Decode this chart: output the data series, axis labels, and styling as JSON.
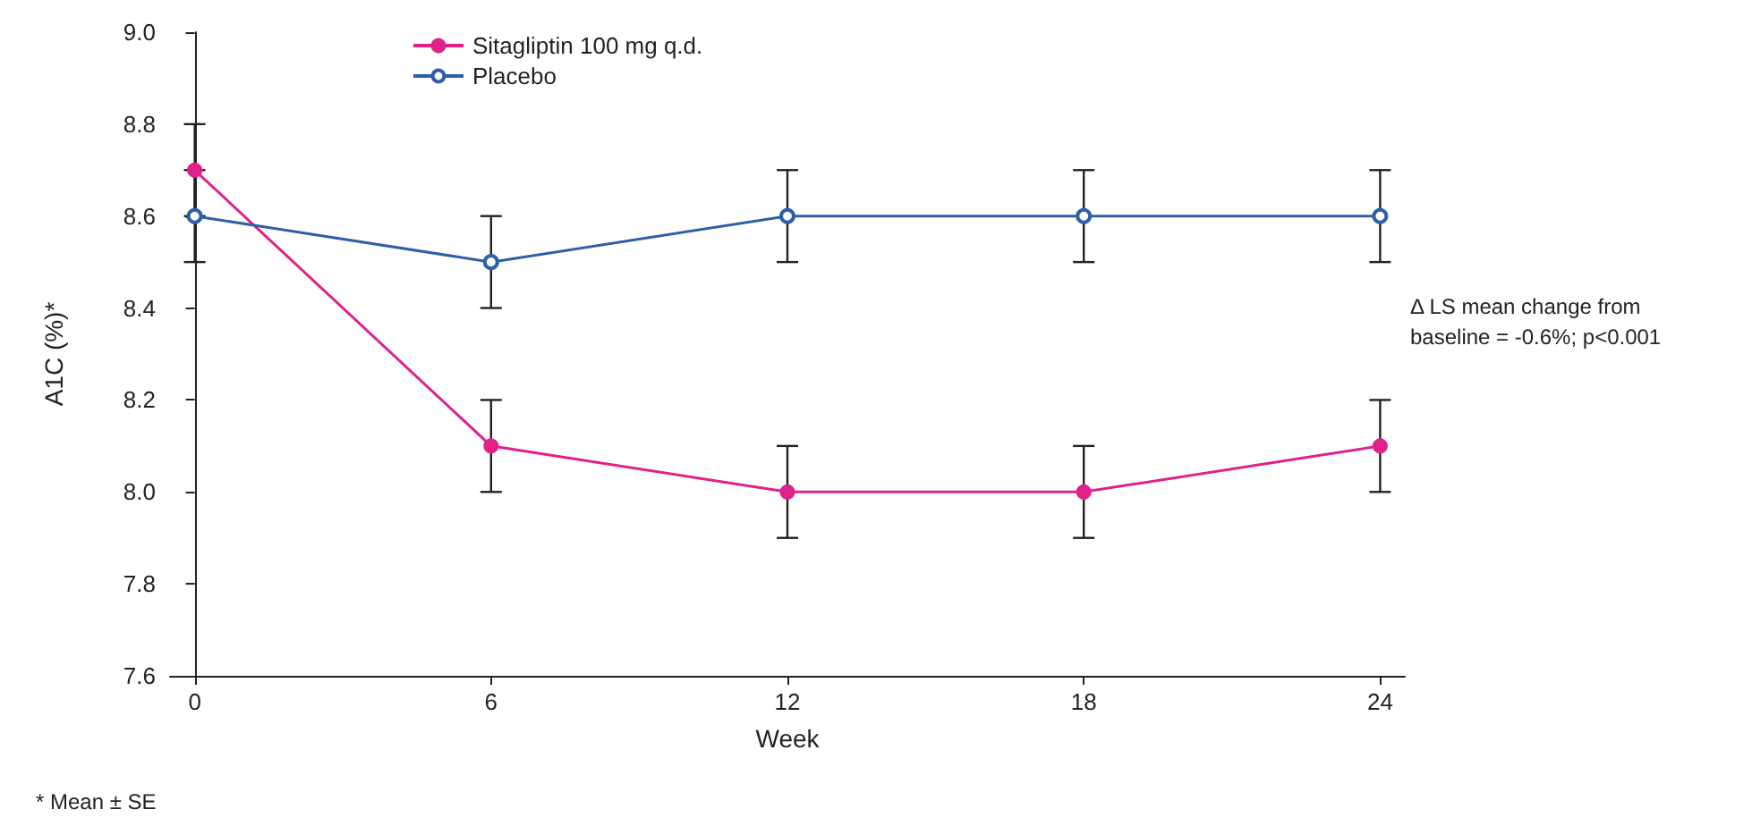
{
  "chart_data": {
    "type": "line",
    "xlabel": "Week",
    "ylabel": "A1C (%)*",
    "x": [
      0,
      6,
      12,
      18,
      24
    ],
    "series": [
      {
        "name": "Sitagliptin 100 mg q.d.",
        "color": "#e0218a",
        "values": [
          8.7,
          8.1,
          8.0,
          8.0,
          8.1
        ],
        "errors": [
          0.1,
          0.1,
          0.1,
          0.1,
          0.1
        ]
      },
      {
        "name": "Placebo",
        "color": "#2f5fa8",
        "values": [
          8.6,
          8.5,
          8.6,
          8.6,
          8.6
        ],
        "errors": [
          0.1,
          0.1,
          0.1,
          0.1,
          0.1
        ]
      }
    ],
    "xlim": [
      -0.5,
      24.5
    ],
    "xticks": [
      0,
      6,
      12,
      18,
      24
    ],
    "ylim": [
      7.6,
      9.0
    ],
    "yticks": [
      {
        "value": 7.6,
        "label": "7.6"
      },
      {
        "value": 7.8,
        "label": "7.8"
      },
      {
        "value": 8,
        "label": "8.0"
      },
      {
        "value": 8.2,
        "label": "8.2"
      },
      {
        "value": 8.4,
        "label": "8.4"
      },
      {
        "value": 8.6,
        "label": "8.6"
      },
      {
        "value": 8.8,
        "label": "8.8"
      },
      {
        "value": 9,
        "label": "9.0"
      }
    ],
    "annotations": [
      "Δ LS mean change from baseline = -0.6%; p<0.001",
      "* Mean ± SE"
    ],
    "grid": false,
    "legend": "top left",
    "marker": "circle",
    "line_style": "solid"
  }
}
